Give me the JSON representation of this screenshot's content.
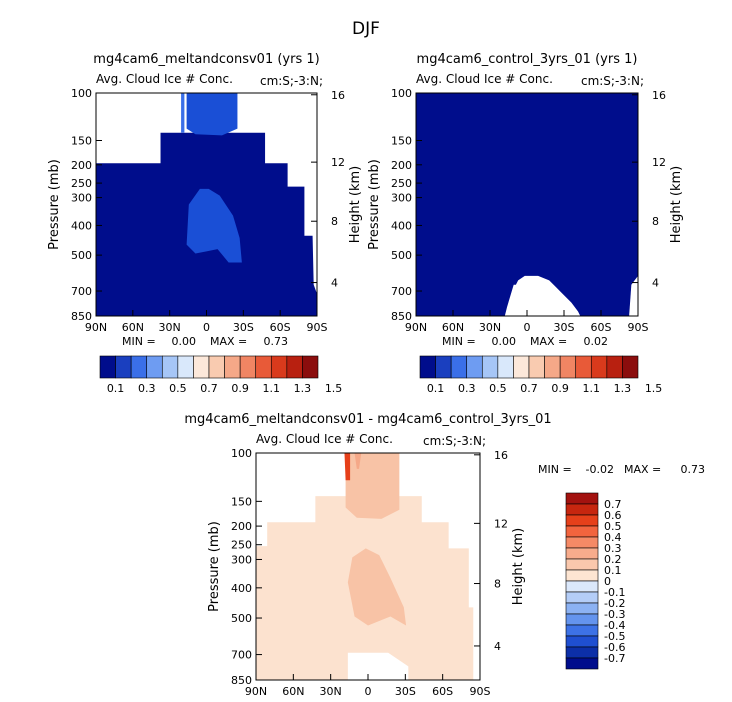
{
  "figure": {
    "title": "DJF"
  },
  "colors": {
    "dark_blue": "#000d8c",
    "mid_blue": "#1a4fd6",
    "light_blue": "#3a6fe8",
    "peach_light": "#fce2cf",
    "peach_mid": "#f8c3a6",
    "peach_dark": "#f5a888",
    "red_top": "#e6401a"
  },
  "chart_data": [
    {
      "type": "heatmap",
      "id": "panel-a",
      "title": "mg4cam6_meltandconsv01 (yrs 1)",
      "subtitle_left": "Avg. Cloud Ice # Conc.",
      "subtitle_right": "cm:S;-3:N;",
      "ylabel": "Pressure (mb)",
      "y2label": "Height (km)",
      "x_ticks": [
        "90N",
        "60N",
        "30N",
        "0",
        "30S",
        "60S",
        "90S"
      ],
      "y_ticks": [
        "100",
        "150",
        "200",
        "250",
        "300",
        "400",
        "500",
        "700",
        "850"
      ],
      "y2_ticks": [
        "16",
        "12",
        "8",
        "4"
      ],
      "min_label": "MIN =",
      "min_value": "0.00",
      "max_label": "MAX =",
      "max_value": "0.73",
      "colorbar_labels": [
        "0.1",
        "0.3",
        "0.5",
        "0.7",
        "0.9",
        "1.1",
        "1.3",
        "1.5"
      ],
      "colorbar_colors": [
        "#000d8c",
        "#1a3fbf",
        "#3a6fe8",
        "#6e9cf2",
        "#a6c6f7",
        "#d9e8fb",
        "#fce8da",
        "#f9cbb0",
        "#f5a888",
        "#f08563",
        "#e85a38",
        "#d93a1c",
        "#b82010",
        "#8b0d0d"
      ]
    },
    {
      "type": "heatmap",
      "id": "panel-b",
      "title": "mg4cam6_control_3yrs_01 (yrs 1)",
      "subtitle_left": "Avg. Cloud Ice # Conc.",
      "subtitle_right": "cm:S;-3:N;",
      "ylabel": "Pressure (mb)",
      "y2label": "Height (km)",
      "x_ticks": [
        "90N",
        "60N",
        "30N",
        "0",
        "30S",
        "60S",
        "90S"
      ],
      "y_ticks": [
        "100",
        "150",
        "200",
        "250",
        "300",
        "400",
        "500",
        "700",
        "850"
      ],
      "y2_ticks": [
        "16",
        "12",
        "8",
        "4"
      ],
      "min_label": "MIN =",
      "min_value": "0.00",
      "max_label": "MAX =",
      "max_value": "0.02",
      "colorbar_labels": [
        "0.1",
        "0.3",
        "0.5",
        "0.7",
        "0.9",
        "1.1",
        "1.3",
        "1.5"
      ],
      "colorbar_colors": [
        "#000d8c",
        "#1a3fbf",
        "#3a6fe8",
        "#6e9cf2",
        "#a6c6f7",
        "#d9e8fb",
        "#fce8da",
        "#f9cbb0",
        "#f5a888",
        "#f08563",
        "#e85a38",
        "#d93a1c",
        "#b82010",
        "#8b0d0d"
      ]
    },
    {
      "type": "heatmap",
      "id": "panel-c",
      "title": "mg4cam6_meltandconsv01 - mg4cam6_control_3yrs_01",
      "subtitle_left": "Avg. Cloud Ice # Conc.",
      "subtitle_right": "cm:S;-3:N;",
      "ylabel": "Pressure (mb)",
      "y2label": "Height (km)",
      "x_ticks": [
        "90N",
        "60N",
        "30N",
        "0",
        "30S",
        "60S",
        "90S"
      ],
      "y_ticks": [
        "100",
        "150",
        "200",
        "250",
        "300",
        "400",
        "500",
        "700",
        "850"
      ],
      "y2_ticks": [
        "16",
        "12",
        "8",
        "4"
      ],
      "min_label": "MIN =",
      "min_value": "-0.02",
      "max_label": "MAX =",
      "max_value": "0.73",
      "colorbar_labels": [
        "0.7",
        "0.6",
        "0.5",
        "0.4",
        "0.3",
        "0.2",
        "0.1",
        "0",
        "-0.1",
        "-0.2",
        "-0.3",
        "-0.4",
        "-0.5",
        "-0.6",
        "-0.7"
      ],
      "colorbar_colors": [
        "#a3120f",
        "#c7260f",
        "#e6401a",
        "#f2643e",
        "#f58a66",
        "#f8ac8c",
        "#fac8ad",
        "#fde5d2",
        "#dbe8fb",
        "#b4cdf7",
        "#8cb2f3",
        "#6494ee",
        "#3d72e6",
        "#1f4fd1",
        "#0c2fa8",
        "#000d8c"
      ]
    }
  ]
}
